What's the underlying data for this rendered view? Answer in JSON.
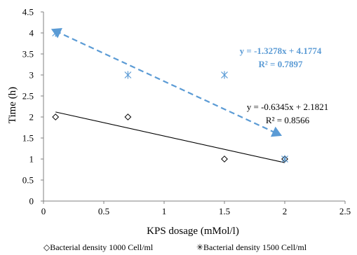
{
  "chart_data": {
    "type": "scatter",
    "xlabel": "KPS dosage (mMol/l)",
    "ylabel": "Time (h)",
    "xlim": [
      0,
      2.5
    ],
    "ylim": [
      0,
      4.5
    ],
    "x_ticks": [
      "0",
      "0.5",
      "1",
      "1.5",
      "2",
      "2.5"
    ],
    "y_ticks": [
      "0",
      "0.5",
      "1",
      "1.5",
      "2",
      "2.5",
      "3",
      "3.5",
      "4",
      "4.5"
    ],
    "x_tick_values": [
      0,
      0.5,
      1,
      1.5,
      2,
      2.5
    ],
    "y_tick_values": [
      0,
      0.5,
      1,
      1.5,
      2,
      2.5,
      3,
      3.5,
      4,
      4.5
    ],
    "grid": false,
    "legend_position": "bottom",
    "series": [
      {
        "name": "Bacterial density  1000 Cell/ml",
        "legend_label": "◇Bacterial density  1000 Cell/ml",
        "marker": "diamond",
        "color": "#000000",
        "points": [
          [
            0.1,
            2
          ],
          [
            0.7,
            2
          ],
          [
            1.5,
            1
          ],
          [
            2,
            1
          ]
        ],
        "trendline": {
          "slope": -0.6345,
          "intercept": 2.1821,
          "equation": "y = -0.6345x + 2.1821",
          "r2": "R² = 0.8566",
          "style": "solid",
          "color": "#000000"
        }
      },
      {
        "name": "Bacterial density  1500 Cell/ml",
        "legend_label": "✳Bacterial density  1500 Cell/ml",
        "marker": "star",
        "color": "#5b9bd5",
        "points": [
          [
            0.1,
            4
          ],
          [
            0.7,
            3
          ],
          [
            1.5,
            3
          ],
          [
            2,
            1
          ]
        ],
        "trendline": {
          "slope": -1.3278,
          "intercept": 4.1774,
          "equation": "y = -1.3278x + 4.1774",
          "r2": "R² = 0.7897",
          "style": "dashed-arrows",
          "color": "#5b9bd5"
        }
      }
    ]
  }
}
